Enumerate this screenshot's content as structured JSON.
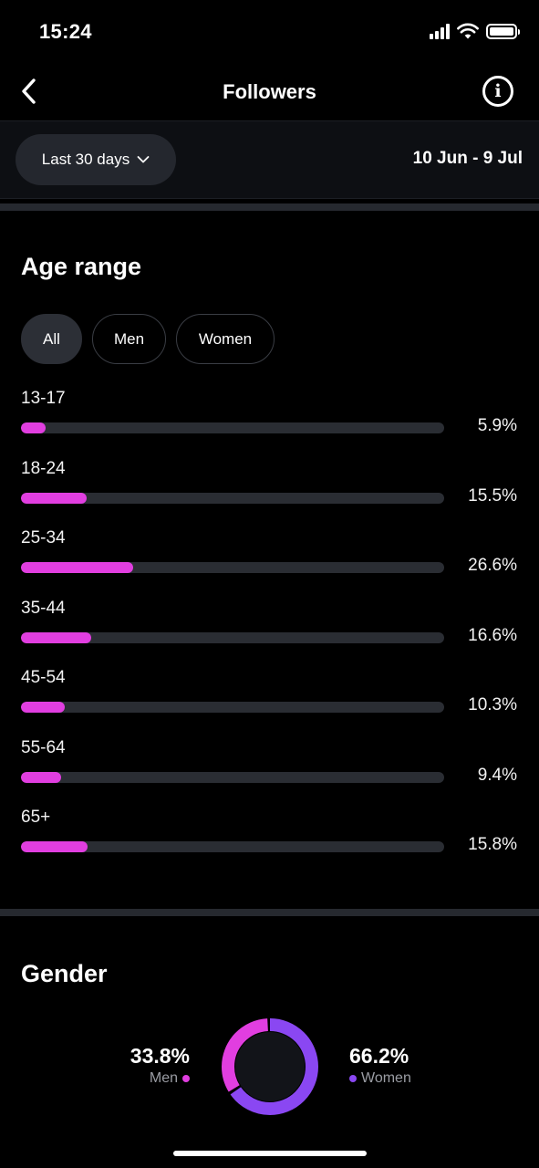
{
  "status_bar": {
    "time": "15:24"
  },
  "header": {
    "title": "Followers"
  },
  "filter": {
    "range_label": "Last 30 days",
    "date_range": "10 Jun - 9 Jul"
  },
  "age_range": {
    "title": "Age range",
    "chips": [
      "All",
      "Men",
      "Women"
    ],
    "active_chip": "All",
    "rows": [
      {
        "label": "13-17",
        "pct_text": "5.9%",
        "value": 5.9
      },
      {
        "label": "18-24",
        "pct_text": "15.5%",
        "value": 15.5
      },
      {
        "label": "25-34",
        "pct_text": "26.6%",
        "value": 26.6
      },
      {
        "label": "35-44",
        "pct_text": "16.6%",
        "value": 16.6
      },
      {
        "label": "45-54",
        "pct_text": "10.3%",
        "value": 10.3
      },
      {
        "label": "55-64",
        "pct_text": "9.4%",
        "value": 9.4
      },
      {
        "label": "65+",
        "pct_text": "15.8%",
        "value": 15.8
      }
    ]
  },
  "gender": {
    "title": "Gender",
    "men": {
      "pct_text": "33.8%",
      "label": "Men",
      "value": 33.8
    },
    "women": {
      "pct_text": "66.2%",
      "label": "Women",
      "value": 66.2
    }
  },
  "colors": {
    "accent_pink": "#e13ee0",
    "accent_purple": "#8a47f2",
    "track": "#2a2d33"
  },
  "icons": {
    "back": "chevron-left-icon",
    "info": "info-icon",
    "dropdown": "chevron-down-icon"
  }
}
